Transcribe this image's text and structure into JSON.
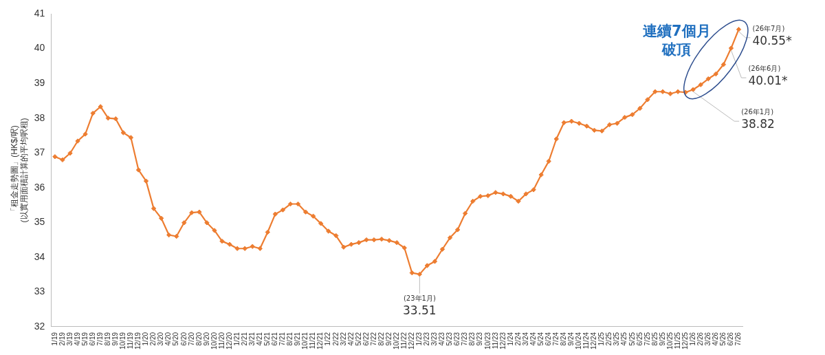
{
  "chart_data": {
    "type": "line",
    "ylabel": "「租金走勢圖」(HK$/呎)\n(以實用面積計算的平均呎租)",
    "categories": [
      "1/19",
      "2/19",
      "3/19",
      "4/19",
      "5/19",
      "6/19",
      "7/19",
      "8/19",
      "9/19",
      "10/19",
      "11/19",
      "12/19",
      "1/20",
      "2/20",
      "3/20",
      "4/20",
      "5/20",
      "6/20",
      "7/20",
      "8/20",
      "9/20",
      "10/20",
      "11/20",
      "12/20",
      "1/21",
      "2/21",
      "3/21",
      "4/21",
      "5/21",
      "6/21",
      "7/21",
      "8/21",
      "9/21",
      "10/21",
      "11/21",
      "12/21",
      "1/22",
      "2/22",
      "3/22",
      "4/22",
      "5/22",
      "6/22",
      "7/22",
      "8/22",
      "9/22",
      "10/22",
      "11/22",
      "12/22",
      "1/23",
      "2/23",
      "3/23",
      "4/23",
      "5/23",
      "6/23",
      "7/23",
      "8/23",
      "9/23",
      "10/23",
      "11/23",
      "12/23",
      "1/24",
      "2/24",
      "3/24",
      "4/24",
      "5/24",
      "6/24",
      "7/24",
      "8/24",
      "9/24",
      "10/24",
      "11/24",
      "12/24",
      "1/25",
      "2/25",
      "3/25",
      "4/25",
      "5/25",
      "6/25",
      "7/25",
      "8/25",
      "9/25",
      "10/25",
      "11/25",
      "12/25",
      "1/26",
      "2/26",
      "3/26",
      "4/26",
      "5/26",
      "6/26",
      "7/26"
    ],
    "series": [
      {
        "color": "#ed7d31",
        "values": [
          36.89,
          36.8,
          36.99,
          37.34,
          37.54,
          38.14,
          38.33,
          38.0,
          37.98,
          37.58,
          37.44,
          36.51,
          36.19,
          35.4,
          35.12,
          34.64,
          34.6,
          34.99,
          35.28,
          35.3,
          34.99,
          34.77,
          34.46,
          34.37,
          34.25,
          34.25,
          34.31,
          34.25,
          34.72,
          35.24,
          35.36,
          35.53,
          35.53,
          35.3,
          35.18,
          34.97,
          34.75,
          34.62,
          34.29,
          34.37,
          34.42,
          34.5,
          34.5,
          34.52,
          34.48,
          34.42,
          34.27,
          33.55,
          33.51,
          33.76,
          33.88,
          34.23,
          34.56,
          34.79,
          35.26,
          35.61,
          35.75,
          35.77,
          35.86,
          35.82,
          35.75,
          35.61,
          35.82,
          35.94,
          36.37,
          36.76,
          37.4,
          37.87,
          37.91,
          37.85,
          37.77,
          37.65,
          37.63,
          37.81,
          37.85,
          38.02,
          38.1,
          38.28,
          38.53,
          38.76,
          38.76,
          38.7,
          38.76,
          38.74,
          38.82,
          38.96,
          39.13,
          39.27,
          39.54,
          40.01,
          40.55
        ]
      }
    ],
    "ylim": [
      32,
      41
    ],
    "yticks": [
      32,
      33,
      34,
      35,
      36,
      37,
      38,
      39,
      40,
      41
    ],
    "grid": false,
    "legend": false,
    "marker": "diamond",
    "line_style": "solid",
    "annotations": [
      {
        "text": "(23年1月)\n33.51",
        "x": "1/23",
        "y": 33.51
      },
      {
        "text": "(26年1月)\n38.82",
        "x": "1/26",
        "y": 38.82
      },
      {
        "text": "(26年6月)\n40.01*",
        "x": "6/26",
        "y": 40.01
      },
      {
        "text": "(26年7月)\n40.55*",
        "x": "7/26",
        "y": 40.55
      },
      "連續7個月",
      "破頂"
    ]
  }
}
